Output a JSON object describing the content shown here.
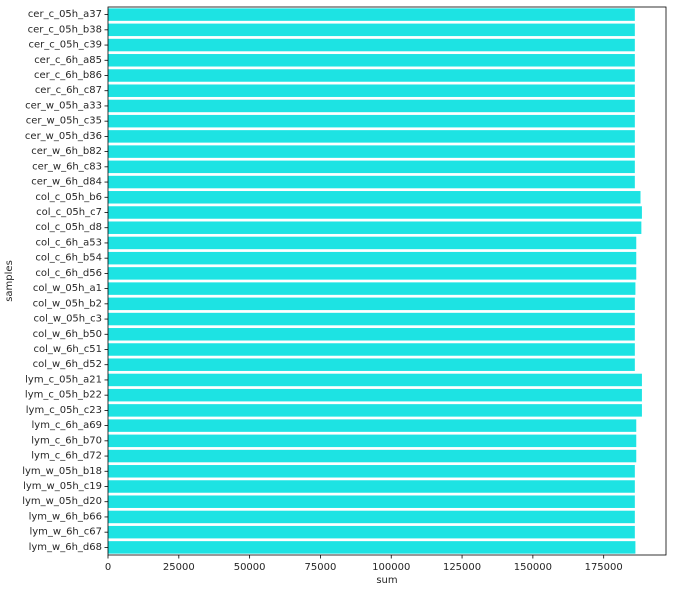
{
  "chart_data": {
    "type": "bar",
    "orientation": "horizontal",
    "xlabel": "sum",
    "ylabel": "samples",
    "xlim": [
      0,
      197000
    ],
    "xticks": [
      0,
      25000,
      50000,
      75000,
      100000,
      125000,
      150000,
      175000
    ],
    "grid": false,
    "bar_color": "#1de3e3",
    "categories": [
      "cer_c_05h_a37",
      "cer_c_05h_b38",
      "cer_c_05h_c39",
      "cer_c_6h_a85",
      "cer_c_6h_b86",
      "cer_c_6h_c87",
      "cer_w_05h_a33",
      "cer_w_05h_c35",
      "cer_w_05h_d36",
      "cer_w_6h_b82",
      "cer_w_6h_c83",
      "cer_w_6h_d84",
      "col_c_05h_b6",
      "col_c_05h_c7",
      "col_c_05h_d8",
      "col_c_6h_a53",
      "col_c_6h_b54",
      "col_c_6h_d56",
      "col_w_05h_a1",
      "col_w_05h_b2",
      "col_w_05h_c3",
      "col_w_6h_b50",
      "col_w_6h_c51",
      "col_w_6h_d52",
      "lym_c_05h_a21",
      "lym_c_05h_b22",
      "lym_c_05h_c23",
      "lym_c_6h_a69",
      "lym_c_6h_b70",
      "lym_c_6h_d72",
      "lym_w_05h_b18",
      "lym_w_05h_c19",
      "lym_w_05h_d20",
      "lym_w_6h_b66",
      "lym_w_6h_c67",
      "lym_w_6h_d68"
    ],
    "values": [
      186000,
      186000,
      186000,
      186000,
      186000,
      186000,
      186000,
      186000,
      186000,
      186000,
      186000,
      186000,
      188000,
      188500,
      188300,
      186500,
      186500,
      186500,
      186200,
      186000,
      186000,
      186000,
      186000,
      186000,
      188500,
      188500,
      188500,
      186500,
      186500,
      186500,
      186000,
      186000,
      186000,
      186000,
      186000,
      186200
    ]
  }
}
